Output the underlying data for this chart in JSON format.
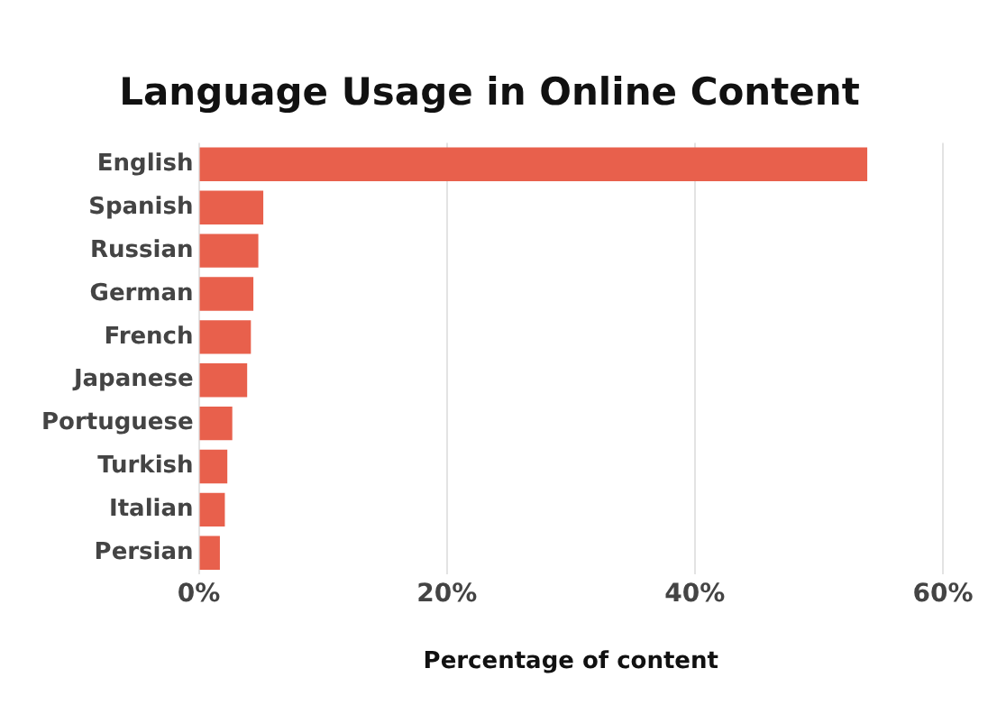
{
  "chart_data": {
    "type": "bar",
    "orientation": "horizontal",
    "title": "Language Usage in Online Content",
    "xlabel": "Percentage of content",
    "categories": [
      "English",
      "Spanish",
      "Russian",
      "German",
      "French",
      "Japanese",
      "Portuguese",
      "Turkish",
      "Italian",
      "Persian"
    ],
    "values": [
      53.9,
      5.2,
      4.8,
      4.4,
      4.2,
      3.9,
      2.7,
      2.3,
      2.1,
      1.7
    ],
    "color": "#e8604c",
    "xlim": [
      0,
      60
    ],
    "xticks": [
      {
        "value": 0,
        "label": "0%"
      },
      {
        "value": 20,
        "label": "20%"
      },
      {
        "value": 40,
        "label": "40%"
      },
      {
        "value": 60,
        "label": "60%"
      }
    ],
    "grid": "x",
    "legend": false
  }
}
